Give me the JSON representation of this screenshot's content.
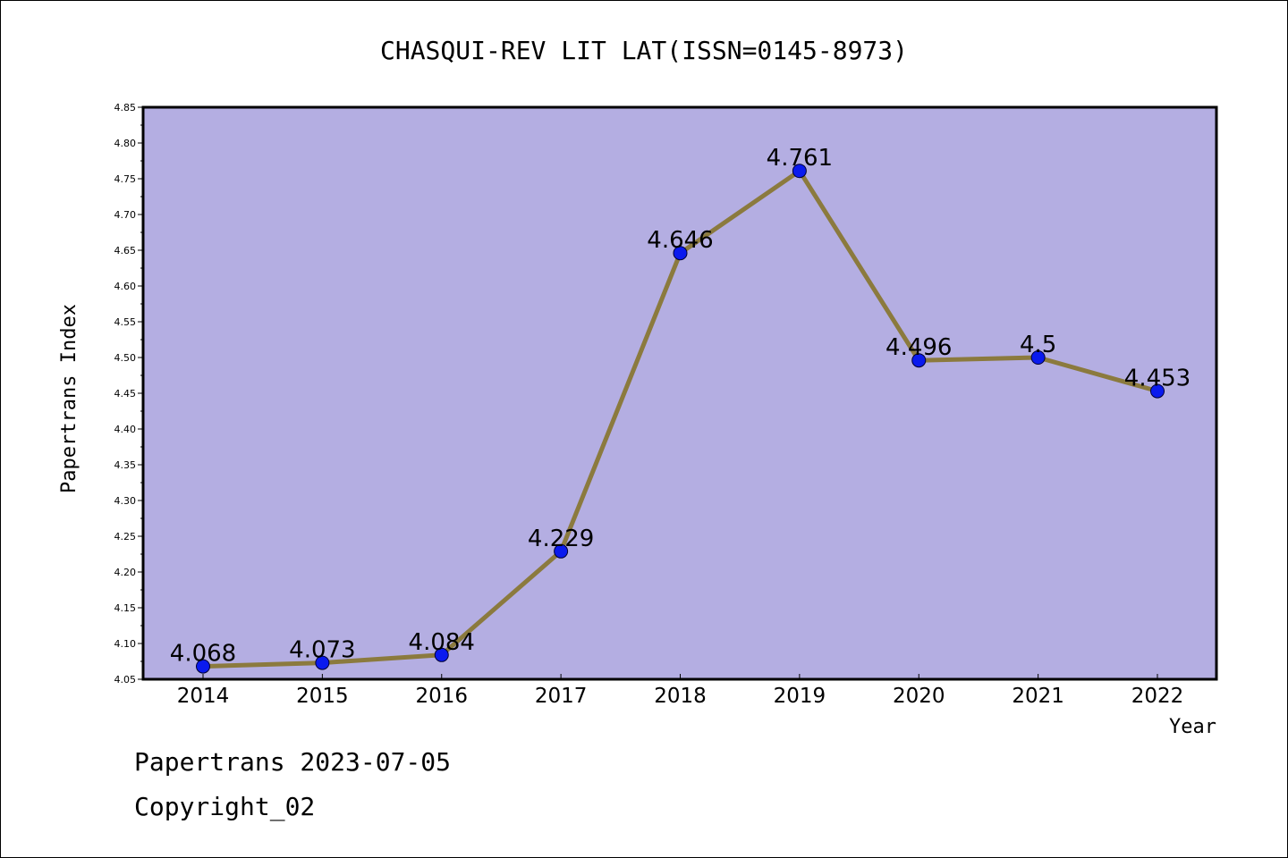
{
  "chart_data": {
    "type": "line",
    "title": "CHASQUI-REV LIT LAT(ISSN=0145-8973)",
    "xlabel": "Year",
    "ylabel": "Papertrans Index",
    "categories": [
      "2014",
      "2015",
      "2016",
      "2017",
      "2018",
      "2019",
      "2020",
      "2021",
      "2022"
    ],
    "series": [
      {
        "values": [
          4.068,
          4.073,
          4.084,
          4.229,
          4.646,
          4.761,
          4.496,
          4.5,
          4.453
        ]
      }
    ],
    "data_labels": [
      "4.068",
      "4.073",
      "4.084",
      "4.229",
      "4.646",
      "4.761",
      "4.496",
      "4.5",
      "4.453"
    ],
    "ylim": [
      4.05,
      4.85
    ],
    "yticks": [
      "4.05",
      "4.10",
      "4.15",
      "4.20",
      "4.25",
      "4.30",
      "4.35",
      "4.40",
      "4.45",
      "4.50",
      "4.55",
      "4.60",
      "4.65",
      "4.70",
      "4.75",
      "4.80",
      "4.85"
    ],
    "grid": false,
    "colors": {
      "plot_bg": "#b4aee2",
      "line": "#8b7a3e",
      "marker": "#0a1aee",
      "frame": "#000000"
    }
  },
  "footer": {
    "line1": "Papertrans 2023-07-05",
    "line2": "Copyright_02"
  }
}
